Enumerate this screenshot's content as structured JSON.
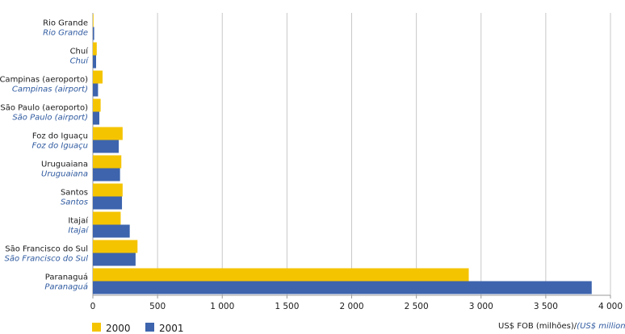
{
  "chart_data": {
    "type": "bar",
    "orientation": "horizontal",
    "categories": [
      {
        "pt": "Rio Grande",
        "en": "Rio Grande"
      },
      {
        "pt": "Chuí",
        "en": "Chuí"
      },
      {
        "pt": "Campinas (aeroporto)",
        "en": "Campinas (airport)"
      },
      {
        "pt": "São Paulo (aeroporto)",
        "en": "São Paulo (airport)"
      },
      {
        "pt": "Foz do Iguaçu",
        "en": "Foz do Iguaçu"
      },
      {
        "pt": "Uruguaiana",
        "en": "Uruguaiana"
      },
      {
        "pt": "Santos",
        "en": "Santos"
      },
      {
        "pt": "Itajaí",
        "en": "Itajaí"
      },
      {
        "pt": "São Francisco do Sul",
        "en": "São Francisco do Sul"
      },
      {
        "pt": "Paranaguá",
        "en": "Paranaguá"
      }
    ],
    "series": [
      {
        "name": "2000",
        "color": "#f5c400",
        "values": [
          5,
          30,
          75,
          60,
          230,
          220,
          230,
          215,
          345,
          2905
        ]
      },
      {
        "name": "2001",
        "color": "#3d64ad",
        "values": [
          10,
          25,
          40,
          50,
          200,
          210,
          225,
          285,
          330,
          3855
        ]
      }
    ],
    "xlim": [
      0,
      4000
    ],
    "xticks": [
      0,
      500,
      1000,
      1500,
      2000,
      2500,
      3000,
      3500,
      4000
    ],
    "xtick_labels": [
      "0",
      "500",
      "1 000",
      "1 500",
      "2 000",
      "2 500",
      "3 000",
      "3 500",
      "4 000"
    ],
    "xlabel_pt": "US$ FOB (milhões)/",
    "xlabel_en": "(US$ million FOB)",
    "grid": "vertical",
    "legend_position": "bottom-left"
  }
}
